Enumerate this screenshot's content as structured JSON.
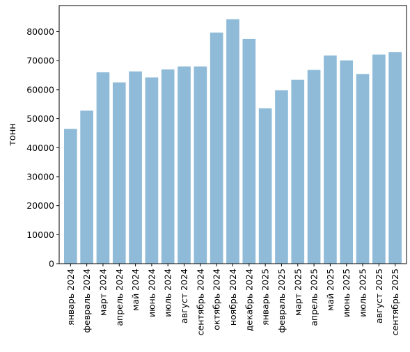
{
  "chart_data": {
    "type": "bar",
    "categories": [
      "январь 2024",
      "февраль 2024",
      "март 2024",
      "апрель 2024",
      "май 2024",
      "июнь 2024",
      "июль 2024",
      "август 2024",
      "сентябрь 2024",
      "октябрь 2024",
      "ноябрь 2024",
      "декабрь 2024",
      "январь 2025",
      "февраль 2025",
      "март 2025",
      "апрель 2025",
      "май 2025",
      "июнь 2025",
      "июль 2025",
      "август 2025",
      "сентябрь 2025"
    ],
    "values": [
      46500,
      52800,
      66000,
      62500,
      66300,
      64200,
      67000,
      68000,
      68000,
      79700,
      84300,
      77500,
      53600,
      59800,
      63400,
      66800,
      71800,
      70100,
      65400,
      72100,
      72900
    ],
    "title": "",
    "xlabel": "",
    "ylabel": "тонн",
    "ylim": [
      0,
      89000
    ],
    "yticks": [
      0,
      10000,
      20000,
      30000,
      40000,
      50000,
      60000,
      70000,
      80000
    ],
    "bar_color": "#8fbbd9",
    "grid": false,
    "legend": "none"
  }
}
